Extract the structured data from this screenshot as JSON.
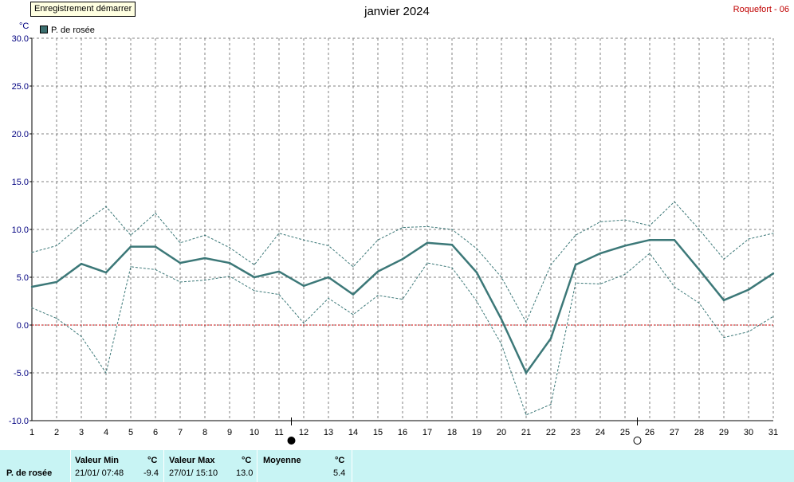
{
  "toolbar": {
    "record_button": "Enregistrement démarrer"
  },
  "header": {
    "title": "janvier 2024",
    "station": "Roquefort - 06"
  },
  "chart_data": {
    "type": "line",
    "unit_label": "°C",
    "legend": [
      "P. de rosée"
    ],
    "x": [
      1,
      2,
      3,
      4,
      5,
      6,
      7,
      8,
      9,
      10,
      11,
      12,
      13,
      14,
      15,
      16,
      17,
      18,
      19,
      20,
      21,
      22,
      23,
      24,
      25,
      26,
      27,
      28,
      29,
      30,
      31
    ],
    "xlim": [
      1,
      31
    ],
    "ylim": [
      -10,
      30
    ],
    "yticks": [
      "30.0",
      "25.0",
      "20.0",
      "15.0",
      "10.0",
      "5.0",
      "0.0",
      "-5.0",
      "-10.0"
    ],
    "yticks_values": [
      30,
      25,
      20,
      15,
      10,
      5,
      0,
      -5,
      -10
    ],
    "grid": true,
    "zero_line": true,
    "series": [
      {
        "name": "P. de rosée",
        "role": "mean",
        "color": "#3c7878",
        "values": [
          4.0,
          4.5,
          6.4,
          5.5,
          8.2,
          8.2,
          6.5,
          7.0,
          6.5,
          5.0,
          5.6,
          4.1,
          5.0,
          3.2,
          5.6,
          6.9,
          8.6,
          8.4,
          5.5,
          0.6,
          -5.0,
          -1.4,
          6.3,
          7.5,
          8.3,
          8.9,
          8.9,
          5.8,
          2.6,
          3.7,
          5.4
        ]
      },
      {
        "role": "max",
        "color": "#3c7878",
        "values": [
          7.6,
          8.3,
          10.5,
          12.4,
          9.4,
          11.7,
          8.6,
          9.4,
          8.1,
          6.3,
          9.6,
          8.9,
          8.3,
          6.1,
          8.9,
          10.2,
          10.3,
          10.0,
          8.0,
          5.0,
          0.3,
          6.3,
          9.4,
          10.8,
          11.0,
          10.4,
          12.9,
          10.0,
          6.9,
          9.0,
          9.6
        ]
      },
      {
        "role": "min",
        "color": "#3c7878",
        "values": [
          1.8,
          0.7,
          -1.2,
          -5.0,
          6.1,
          5.8,
          4.5,
          4.7,
          5.1,
          3.6,
          3.2,
          0.2,
          2.8,
          1.1,
          3.1,
          2.7,
          6.5,
          6.0,
          2.5,
          -2.0,
          -9.4,
          -8.3,
          4.4,
          4.3,
          5.3,
          7.5,
          4.0,
          2.3,
          -1.3,
          -0.7,
          0.9
        ]
      }
    ],
    "moon_phases": [
      {
        "day": 11.5,
        "phase": "new"
      },
      {
        "day": 25.5,
        "phase": "full"
      }
    ]
  },
  "footer": {
    "series_label": "P. de rosée",
    "min": {
      "header": "Valeur Min",
      "unit": "°C",
      "time": "21/01/  07:48",
      "value": "-9.4"
    },
    "max": {
      "header": "Valeur Max",
      "unit": "°C",
      "time": "27/01/  15:10",
      "value": "13.0"
    },
    "avg": {
      "header": "Moyenne",
      "unit": "°C",
      "value": "5.4"
    }
  },
  "colors": {
    "background": "#ffffff",
    "footer": "#c8f4f4",
    "zero_line": "#cc0000",
    "grid": "#808080",
    "station": "#c00000"
  }
}
